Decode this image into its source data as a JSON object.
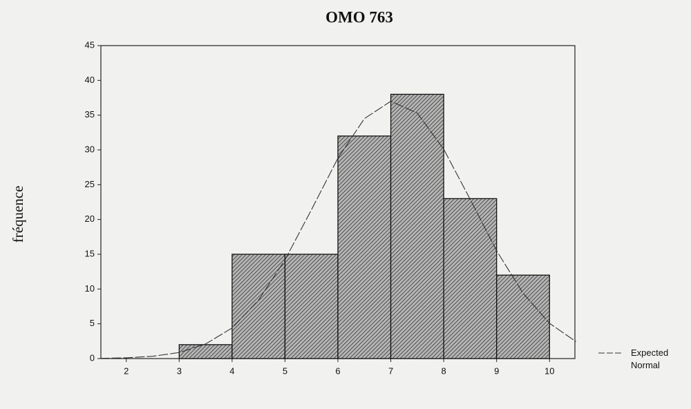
{
  "chart_data": {
    "type": "histogram",
    "title": "OMO 763",
    "ylabel": "fréquence",
    "bins": [
      3,
      4,
      5,
      6,
      7,
      8,
      9,
      10
    ],
    "values": [
      2,
      15,
      15,
      32,
      38,
      23,
      12
    ],
    "color": "#9a9a9a",
    "series": [
      {
        "name": "Expected Normal",
        "color": "#333333",
        "x": [
          1.5,
          2,
          2.5,
          3,
          3.5,
          4,
          4.5,
          5,
          5.5,
          6,
          6.5,
          7,
          7.5,
          8,
          8.5,
          9,
          9.5,
          10,
          10.5
        ],
        "values": [
          0.03,
          0.11,
          0.33,
          0.87,
          2.1,
          4.4,
          8.4,
          14.2,
          21.4,
          28.8,
          34.5,
          37,
          35.3,
          30.1,
          22.9,
          15.5,
          9.4,
          5.07,
          2.44
        ]
      }
    ],
    "xlim": [
      1.52,
      10.48
    ],
    "xticks": [
      2,
      3,
      4,
      5,
      6,
      7,
      8,
      9,
      10
    ],
    "ylim": [
      0,
      45
    ],
    "yticks": [
      0,
      5,
      10,
      15,
      20,
      25,
      30,
      35,
      40,
      45
    ],
    "grid": false,
    "legend": "right"
  }
}
